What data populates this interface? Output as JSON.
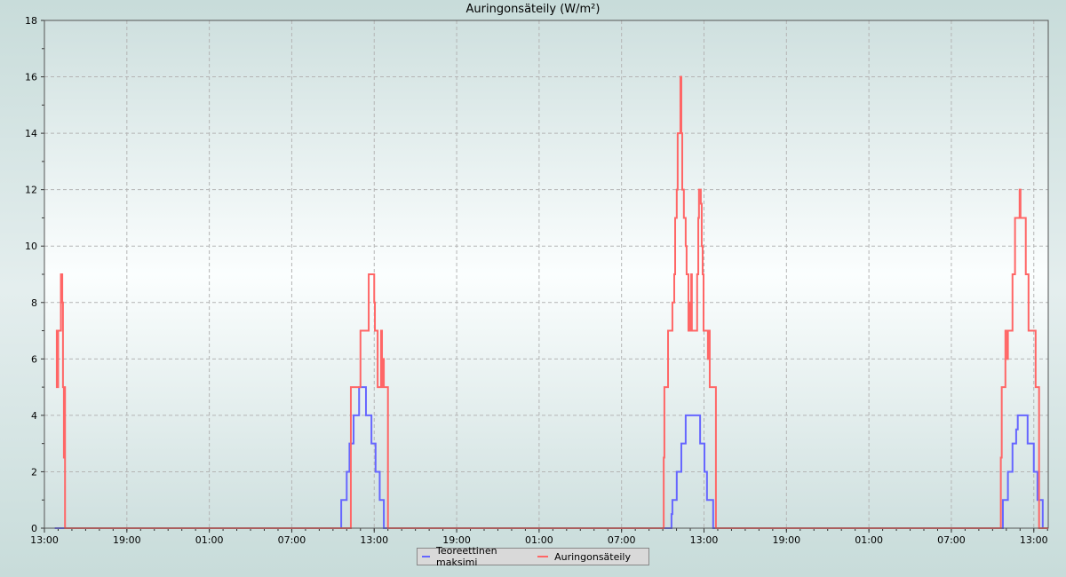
{
  "chart_data": {
    "type": "line",
    "title": "Auringonsäteily (W/m²)",
    "xlabel": "",
    "ylabel": "",
    "ylim": [
      0,
      18
    ],
    "yticks": [
      0,
      2,
      4,
      6,
      8,
      10,
      12,
      14,
      16,
      18
    ],
    "x_start": "13:00",
    "x_end": "14:03",
    "xticks": [
      "13:00",
      "19:00",
      "01:00",
      "07:00",
      "13:00",
      "19:00",
      "01:00",
      "07:00",
      "13:00",
      "19:00",
      "01:00",
      "07:00",
      "13:00"
    ],
    "grid": true,
    "legend_placement": "bottom",
    "step": true,
    "series": [
      {
        "name": "Teoreettinen maksimi",
        "color": "#6666ff",
        "points": [
          [
            "13:45",
            0
          ],
          [
            "10:36",
            1
          ],
          [
            "11:00",
            2
          ],
          [
            "11:12",
            3
          ],
          [
            "11:30",
            4
          ],
          [
            "11:54",
            5
          ],
          [
            "12:24",
            4
          ],
          [
            "12:48",
            3
          ],
          [
            "13:06",
            2
          ],
          [
            "13:24",
            1
          ],
          [
            "13:42",
            0
          ],
          [
            "10:38",
            0.5
          ],
          [
            "10:42",
            1
          ],
          [
            "11:01",
            2
          ],
          [
            "11:21",
            3
          ],
          [
            "11:40",
            4
          ],
          [
            "12:43",
            3
          ],
          [
            "13:02",
            2
          ],
          [
            "13:13",
            1
          ],
          [
            "13:40",
            0
          ],
          [
            "10:45",
            1
          ],
          [
            "11:07",
            2
          ],
          [
            "11:27",
            3
          ],
          [
            "11:43",
            3.5
          ],
          [
            "11:50",
            4
          ],
          [
            "12:33",
            3
          ],
          [
            "13:00",
            2
          ],
          [
            "13:16",
            1
          ],
          [
            "13:39",
            0
          ]
        ]
      },
      {
        "name": "Auringonsäteily",
        "color": "#ff6666",
        "points": [
          [
            "13:50",
            7
          ],
          [
            "13:54",
            5
          ],
          [
            "14:00",
            7
          ],
          [
            "14:12",
            9
          ],
          [
            "14:18",
            8
          ],
          [
            "14:21",
            5
          ],
          [
            "14:25",
            2.5
          ],
          [
            "14:27",
            5
          ],
          [
            "14:30",
            0
          ],
          [
            "11:18",
            5
          ],
          [
            "12:00",
            7
          ],
          [
            "12:36",
            9
          ],
          [
            "13:00",
            8
          ],
          [
            "13:03",
            7
          ],
          [
            "13:15",
            5
          ],
          [
            "13:30",
            7
          ],
          [
            "13:34",
            5
          ],
          [
            "13:36",
            6
          ],
          [
            "13:42",
            5
          ],
          [
            "14:00",
            0
          ],
          [
            "10:04",
            2.5
          ],
          [
            "10:07",
            5
          ],
          [
            "10:23",
            7
          ],
          [
            "10:42",
            8
          ],
          [
            "10:50",
            9
          ],
          [
            "10:54",
            11
          ],
          [
            "11:01",
            12
          ],
          [
            "11:05",
            14
          ],
          [
            "11:17",
            16
          ],
          [
            "11:21",
            14
          ],
          [
            "11:25",
            12
          ],
          [
            "11:32",
            11
          ],
          [
            "11:40",
            10
          ],
          [
            "11:44",
            9
          ],
          [
            "11:52",
            7
          ],
          [
            "11:56",
            8
          ],
          [
            "12:00",
            7
          ],
          [
            "12:04",
            9
          ],
          [
            "12:07",
            7
          ],
          [
            "12:30",
            9
          ],
          [
            "12:35",
            11
          ],
          [
            "12:38",
            12
          ],
          [
            "12:46",
            11.5
          ],
          [
            "12:50",
            10
          ],
          [
            "12:54",
            9
          ],
          [
            "12:58",
            7
          ],
          [
            "13:17",
            6
          ],
          [
            "13:21",
            7
          ],
          [
            "13:25",
            5
          ],
          [
            "13:52",
            0
          ],
          [
            "10:36",
            2.5
          ],
          [
            "10:40",
            5
          ],
          [
            "10:56",
            7
          ],
          [
            "11:04",
            6
          ],
          [
            "11:07",
            7
          ],
          [
            "11:27",
            9
          ],
          [
            "11:38",
            11
          ],
          [
            "11:58",
            12
          ],
          [
            "12:02",
            11
          ],
          [
            "12:25",
            9
          ],
          [
            "12:37",
            7
          ],
          [
            "13:08",
            5
          ],
          [
            "13:23",
            0
          ]
        ]
      }
    ]
  }
}
